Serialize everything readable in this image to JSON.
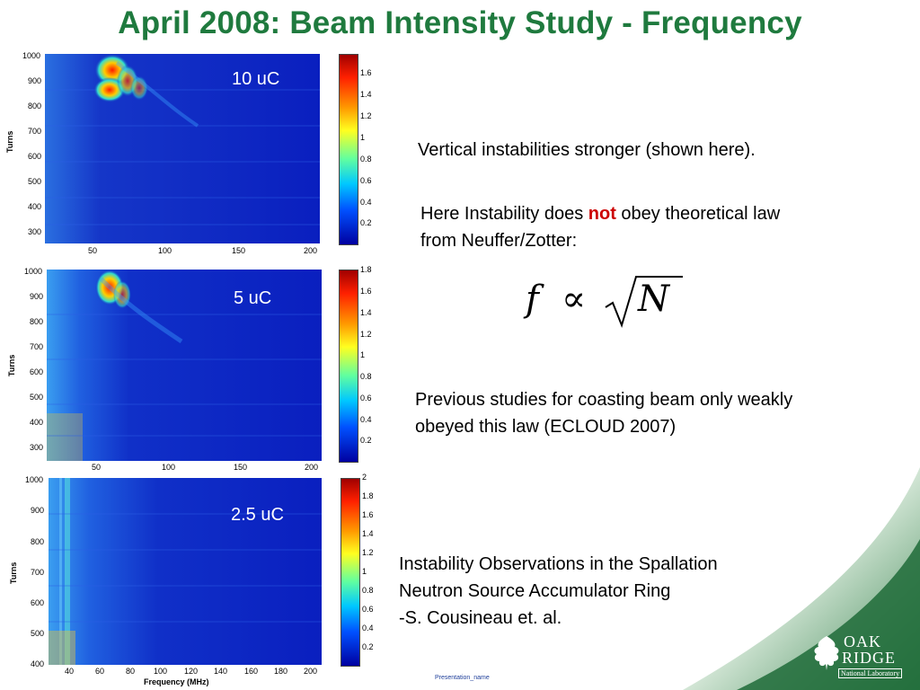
{
  "title": "April 2008: Beam Intensity Study - Frequency",
  "panels": [
    {
      "label": "10 uC",
      "ylabel": "Turns",
      "yticks": [
        "1000",
        "900",
        "800",
        "700",
        "600",
        "500",
        "400",
        "300"
      ],
      "xticks": [
        "50",
        "100",
        "150",
        "200"
      ],
      "cbticks": [
        "1.6",
        "1.4",
        "1.2",
        "1",
        "0.8",
        "0.6",
        "0.4",
        "0.2"
      ]
    },
    {
      "label": "5 uC",
      "ylabel": "Turns",
      "yticks": [
        "1000",
        "900",
        "800",
        "700",
        "600",
        "500",
        "400",
        "300"
      ],
      "xticks": [
        "50",
        "100",
        "150",
        "200"
      ],
      "cbticks": [
        "1.8",
        "1.6",
        "1.4",
        "1.2",
        "1",
        "0.8",
        "0.6",
        "0.4",
        "0.2"
      ]
    },
    {
      "label": "2.5 uC",
      "ylabel": "Turns",
      "yticks": [
        "1000",
        "900",
        "800",
        "700",
        "600",
        "500",
        "400"
      ],
      "xticks": [
        "40",
        "60",
        "80",
        "100",
        "120",
        "140",
        "160",
        "180",
        "200"
      ],
      "cbticks": [
        "2",
        "1.8",
        "1.6",
        "1.4",
        "1.2",
        "1",
        "0.8",
        "0.6",
        "0.4",
        "0.2"
      ],
      "xlabel": "Frequency (MHz)"
    }
  ],
  "text": {
    "vertical": "Vertical instabilities stronger (shown here).",
    "law_pre": "Here Instability does ",
    "law_not": "not",
    "law_post": " obey theoretical law",
    "law_line2": "from Neuffer/Zotter:",
    "formula_f": "f",
    "formula_prop": "∝",
    "formula_n": "N",
    "previous_1": "Previous studies for coasting beam only weakly",
    "previous_2": "obeyed this law (ECLOUD 2007)",
    "ref_1": "Instability Observations in the Spallation",
    "ref_2": "Neutron Source Accumulator Ring",
    "ref_3": "-S. Cousineau et. al."
  },
  "footer": "Presentation_name",
  "logo": {
    "line1": "OAK",
    "line2": "RIDGE",
    "line3": "National Laboratory"
  },
  "colors": {
    "title": "#1f7a3e",
    "accent_red": "#cc0000",
    "plot_bg": "#0a1fbf"
  }
}
